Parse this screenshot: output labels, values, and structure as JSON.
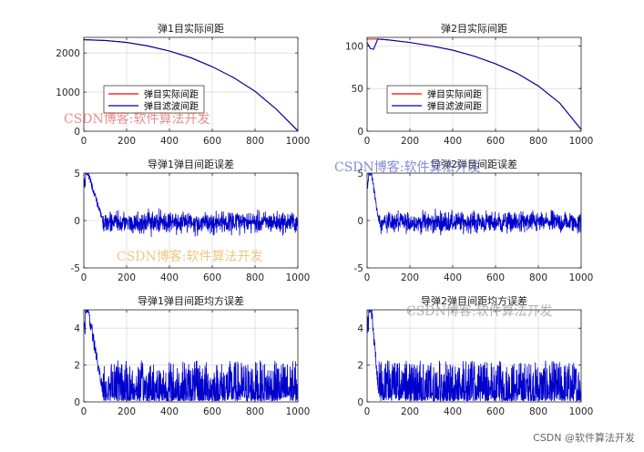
{
  "chart_data": [
    {
      "type": "line",
      "title": "弹1目实际间距",
      "xlim": [
        0,
        1000
      ],
      "ylim": [
        0,
        2400
      ],
      "xticks": [
        0,
        200,
        400,
        600,
        800,
        1000
      ],
      "yticks": [
        0,
        1000,
        2000
      ],
      "grid": true,
      "legend": {
        "placement": "lower-left",
        "entries": [
          "弹目实际间距",
          "弹目滤波间距"
        ]
      },
      "series": [
        {
          "name": "弹目实际间距",
          "color": "#ff0000",
          "x": [
            0,
            100,
            200,
            300,
            400,
            500,
            600,
            700,
            800,
            900,
            1000
          ],
          "y": [
            2340,
            2320,
            2270,
            2180,
            2050,
            1880,
            1650,
            1370,
            1020,
            560,
            10
          ]
        },
        {
          "name": "弹目滤波间距",
          "color": "#0000b0",
          "x": [
            0,
            100,
            200,
            300,
            400,
            500,
            600,
            700,
            800,
            900,
            1000
          ],
          "y": [
            2340,
            2320,
            2270,
            2180,
            2050,
            1880,
            1650,
            1370,
            1020,
            560,
            10
          ]
        }
      ]
    },
    {
      "type": "line",
      "title": "弹2目实际间距",
      "xlim": [
        0,
        1000
      ],
      "ylim": [
        0,
        110
      ],
      "xticks": [
        0,
        200,
        400,
        600,
        800,
        1000
      ],
      "yticks": [
        0,
        50,
        100
      ],
      "grid": true,
      "legend": {
        "placement": "lower-left",
        "entries": [
          "弹目实际间距",
          "弹目滤波间距"
        ]
      },
      "series": [
        {
          "name": "弹目实际间距",
          "color": "#ff0000",
          "x": [
            0,
            50,
            100,
            200,
            300,
            400,
            500,
            600,
            700,
            800,
            900,
            1000
          ],
          "y": [
            108,
            108,
            107,
            104,
            100,
            95,
            88,
            79,
            68,
            53,
            33,
            2
          ]
        },
        {
          "name": "弹目滤波间距",
          "color": "#0000b0",
          "x": [
            0,
            15,
            30,
            50,
            100,
            200,
            300,
            400,
            500,
            600,
            700,
            800,
            900,
            1000
          ],
          "y": [
            104,
            97,
            96,
            108,
            107,
            104,
            100,
            95,
            88,
            79,
            68,
            53,
            33,
            2
          ]
        }
      ]
    },
    {
      "type": "line",
      "title": "导弹1弹目间距误差",
      "xlim": [
        0,
        1000
      ],
      "ylim": [
        -5,
        5
      ],
      "xticks": [
        0,
        200,
        400,
        600,
        800,
        1000
      ],
      "yticks": [
        -5,
        0,
        5
      ],
      "grid": true,
      "series": [
        {
          "color": "#0000cc",
          "transient_end": 90,
          "peak": 5,
          "noise_amplitude": 1.1,
          "steady_mean": -0.2
        }
      ]
    },
    {
      "type": "line",
      "title": "导弹2弹目间距误差",
      "xlim": [
        0,
        1000
      ],
      "ylim": [
        -5,
        5
      ],
      "xticks": [
        0,
        200,
        400,
        600,
        800,
        1000
      ],
      "yticks": [
        -5,
        0,
        5
      ],
      "grid": true,
      "series": [
        {
          "color": "#0000cc",
          "transient_end": 55,
          "peak": 5,
          "noise_amplitude": 1.1,
          "steady_mean": -0.2
        }
      ]
    },
    {
      "type": "line",
      "title": "导弹1弹目间距均方误差",
      "xlim": [
        0,
        1000
      ],
      "ylim": [
        0,
        5
      ],
      "xticks": [
        0,
        200,
        400,
        600,
        800,
        1000
      ],
      "yticks": [
        0,
        2,
        4
      ],
      "grid": true,
      "series": [
        {
          "color": "#0000cc",
          "transient_end": 90,
          "peak": 5,
          "noise_amplitude": 2.2,
          "steady_mean": 0.5
        }
      ]
    },
    {
      "type": "line",
      "title": "导弹2弹目间距均方误差",
      "xlim": [
        0,
        1000
      ],
      "ylim": [
        0,
        5
      ],
      "xticks": [
        0,
        200,
        400,
        600,
        800,
        1000
      ],
      "yticks": [
        0,
        2,
        4
      ],
      "grid": true,
      "series": [
        {
          "color": "#0000cc",
          "transient_end": 55,
          "peak": 5,
          "noise_amplitude": 2.2,
          "steady_mean": 0.5
        }
      ]
    }
  ],
  "watermarks": [
    "CSDN博客:软件算法开发",
    "CSDN博客:软件算法开发",
    "CSDN博客:软件算法开发",
    "CSDN博客:软件算法开发"
  ],
  "credit": "CSDN @软件算法开发"
}
